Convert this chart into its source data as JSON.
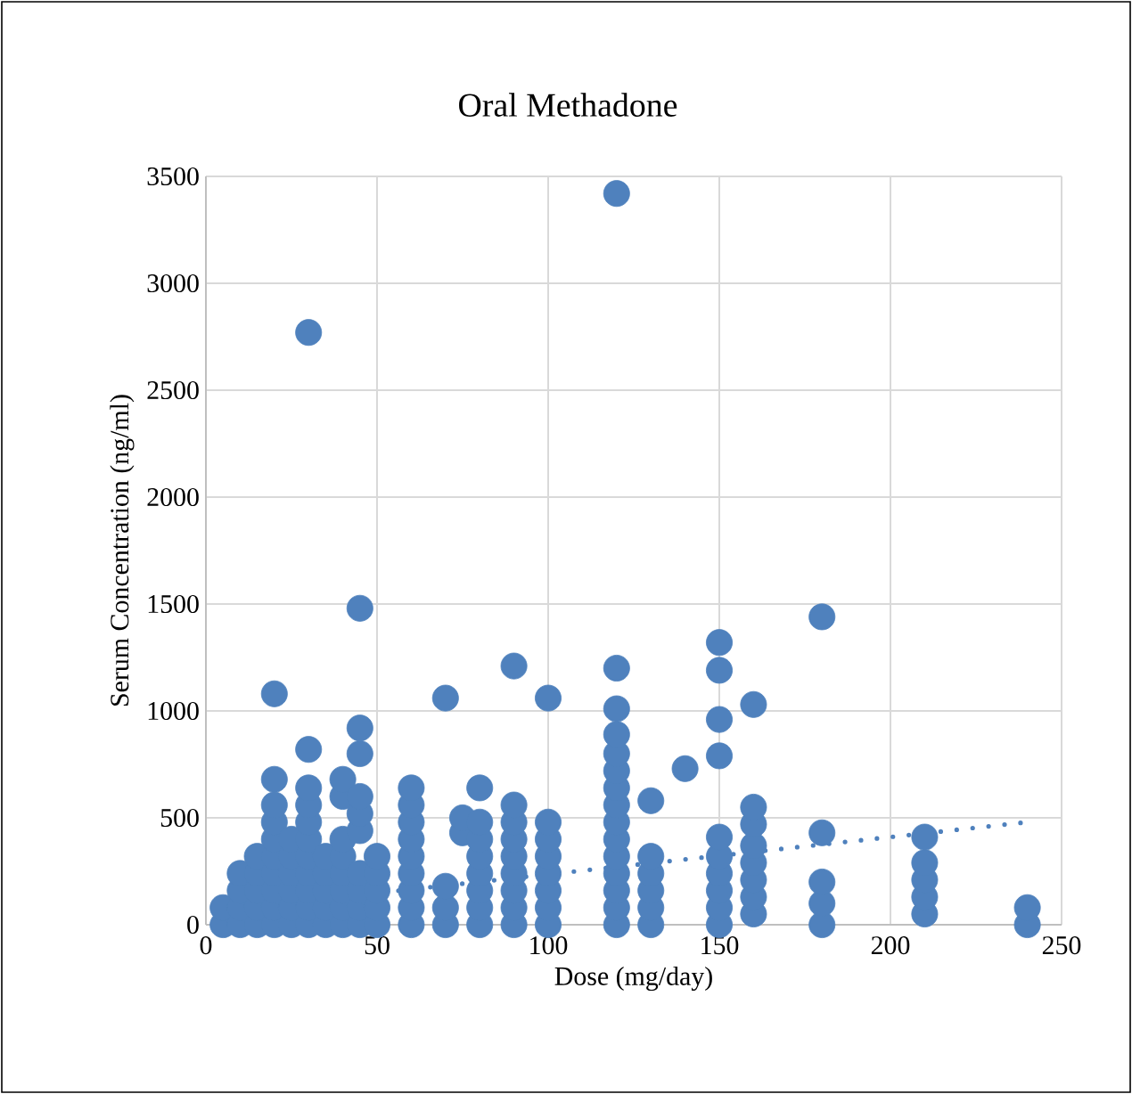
{
  "chart_data": {
    "type": "scatter",
    "title": "Oral Methadone",
    "xlabel": "Dose (mg/day)",
    "ylabel": "Serum Concentration (ng/ml)",
    "xlim": [
      0,
      250
    ],
    "ylim": [
      0,
      3500
    ],
    "xticks": [
      0,
      50,
      100,
      150,
      200,
      250
    ],
    "yticks": [
      0,
      500,
      1000,
      1500,
      2000,
      2500,
      3000,
      3500
    ],
    "grid": true,
    "marker": "circle",
    "series": [
      {
        "color": "#4f81bd",
        "x": [
          5,
          5,
          10,
          10,
          10,
          10,
          15,
          15,
          15,
          15,
          15,
          20,
          20,
          20,
          20,
          20,
          20,
          20,
          20,
          20,
          20,
          25,
          25,
          25,
          25,
          25,
          25,
          30,
          30,
          30,
          30,
          30,
          30,
          30,
          30,
          30,
          30,
          30,
          35,
          35,
          35,
          35,
          35,
          40,
          40,
          40,
          40,
          40,
          40,
          40,
          40,
          45,
          45,
          45,
          45,
          45,
          45,
          45,
          45,
          45,
          45,
          50,
          50,
          50,
          50,
          50,
          60,
          60,
          60,
          60,
          60,
          60,
          60,
          60,
          60,
          70,
          70,
          70,
          70,
          75,
          75,
          80,
          80,
          80,
          80,
          80,
          80,
          80,
          80,
          90,
          90,
          90,
          90,
          90,
          90,
          90,
          90,
          90,
          100,
          100,
          100,
          100,
          100,
          100,
          100,
          100,
          120,
          120,
          120,
          120,
          120,
          120,
          120,
          120,
          120,
          120,
          120,
          120,
          120,
          120,
          120,
          130,
          130,
          130,
          130,
          130,
          130,
          140,
          150,
          150,
          150,
          150,
          150,
          150,
          150,
          150,
          150,
          150,
          160,
          160,
          160,
          160,
          160,
          160,
          160,
          160,
          180,
          180,
          180,
          180,
          180,
          210,
          210,
          210,
          210,
          210,
          240,
          240
        ],
        "values": [
          0,
          80,
          0,
          80,
          160,
          240,
          0,
          80,
          160,
          240,
          320,
          0,
          80,
          160,
          240,
          320,
          400,
          480,
          560,
          680,
          1080,
          0,
          80,
          160,
          240,
          320,
          400,
          0,
          80,
          160,
          240,
          320,
          400,
          480,
          560,
          640,
          820,
          2770,
          0,
          80,
          160,
          240,
          320,
          0,
          80,
          160,
          240,
          320,
          400,
          600,
          680,
          0,
          80,
          160,
          240,
          440,
          520,
          600,
          800,
          920,
          1480,
          0,
          80,
          160,
          240,
          320,
          0,
          80,
          160,
          240,
          320,
          400,
          480,
          560,
          640,
          0,
          80,
          180,
          1060,
          430,
          500,
          0,
          80,
          160,
          240,
          320,
          400,
          480,
          640,
          0,
          80,
          160,
          240,
          320,
          400,
          480,
          560,
          1210,
          0,
          80,
          160,
          240,
          320,
          400,
          480,
          1060,
          0,
          80,
          160,
          240,
          320,
          400,
          480,
          560,
          640,
          720,
          800,
          890,
          1010,
          1200,
          3420,
          0,
          80,
          160,
          240,
          320,
          580,
          730,
          0,
          80,
          160,
          240,
          320,
          410,
          790,
          960,
          1190,
          1320,
          50,
          130,
          210,
          290,
          370,
          470,
          550,
          1030,
          0,
          100,
          200,
          430,
          1440,
          50,
          130,
          210,
          290,
          410,
          0,
          80
        ]
      },
      {
        "type": "line",
        "line_style": "dotted",
        "marker": "none",
        "color": "#4f81bd",
        "x": [
          5,
          240
        ],
        "values": [
          70,
          480
        ]
      }
    ]
  }
}
